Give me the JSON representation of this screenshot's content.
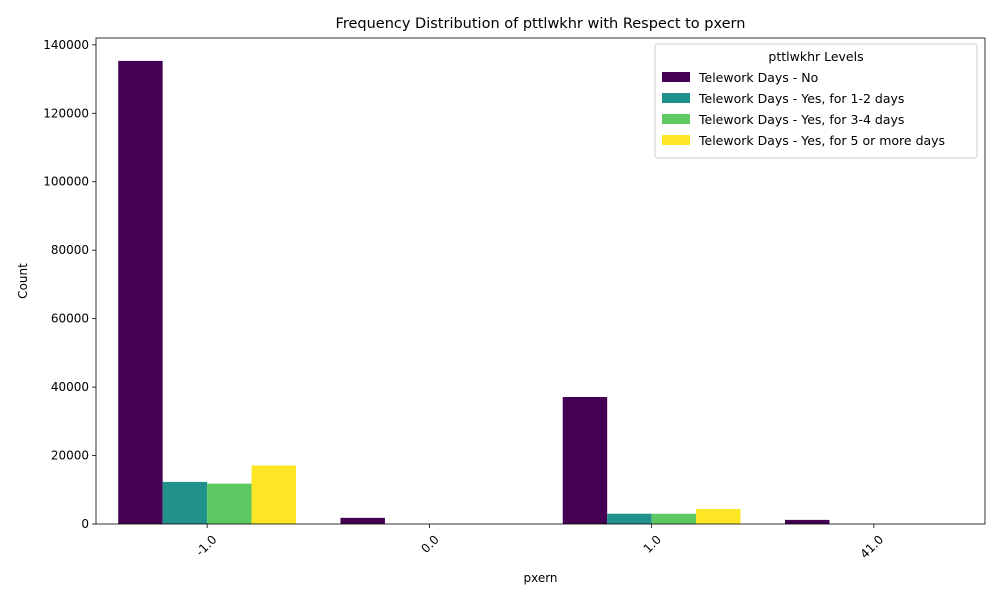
{
  "chart_data": {
    "type": "bar",
    "title": "Frequency Distribution of pttlwkhr with Respect to pxern",
    "xlabel": "pxern",
    "ylabel": "Count",
    "categories": [
      "-1.0",
      "0.0",
      "1.0",
      "41.0"
    ],
    "ylim": [
      0,
      142000
    ],
    "yticks": [
      0,
      20000,
      40000,
      60000,
      80000,
      100000,
      120000,
      140000
    ],
    "grid": false,
    "legend": {
      "title": "pttlwkhr Levels",
      "placement": "top-right"
    },
    "series": [
      {
        "name": "Telework Days - No",
        "color": "#440154",
        "values": [
          135300,
          1800,
          37100,
          1200
        ]
      },
      {
        "name": "Telework Days - Yes, for 1-2 days",
        "color": "#21918c",
        "values": [
          12300,
          0,
          3000,
          0
        ]
      },
      {
        "name": "Telework Days - Yes, for 3-4 days",
        "color": "#5ec962",
        "values": [
          11800,
          0,
          3000,
          0
        ]
      },
      {
        "name": "Telework Days - Yes, for 5 or more days",
        "color": "#fde725",
        "values": [
          17100,
          0,
          4400,
          0
        ]
      }
    ]
  }
}
